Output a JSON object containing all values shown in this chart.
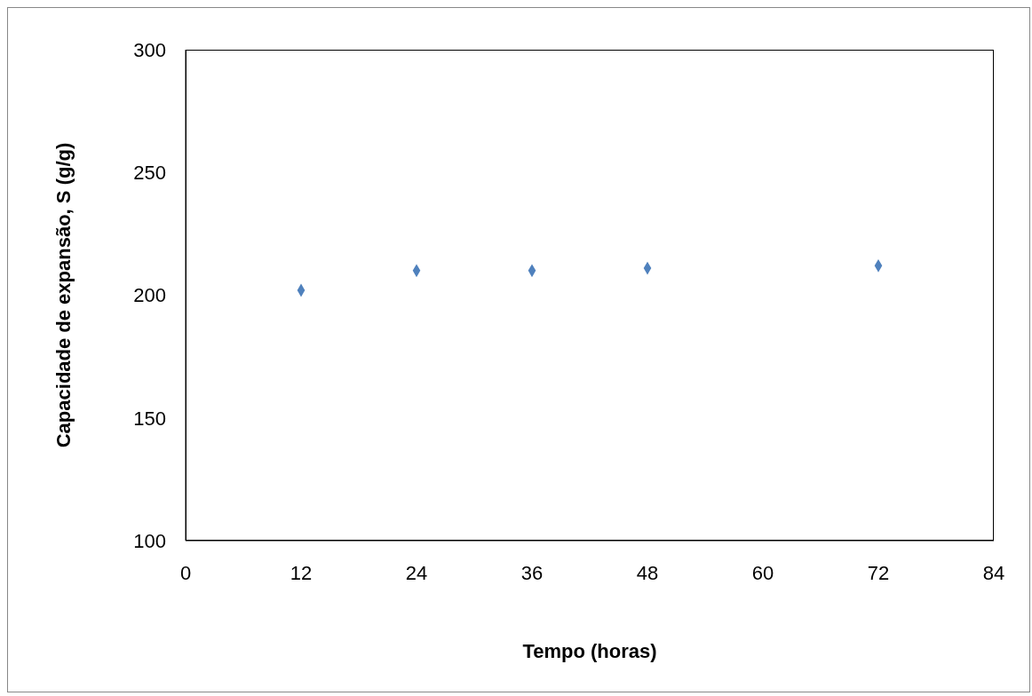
{
  "chart_data": {
    "type": "scatter",
    "xlabel": "Tempo (horas)",
    "ylabel": "Capacidade  de expansão, S (g/g)",
    "x": [
      12,
      24,
      36,
      48,
      72
    ],
    "series": [
      {
        "color": "#4f81bd",
        "values": [
          202,
          210,
          210,
          211,
          212
        ]
      }
    ],
    "xlim": [
      0,
      84
    ],
    "xticks": [
      0,
      12,
      24,
      36,
      48,
      60,
      72,
      84
    ],
    "ylim": [
      100,
      300
    ],
    "yticks": [
      100,
      150,
      200,
      250,
      300
    ],
    "grid": false,
    "legend": false,
    "marker": "diamond"
  }
}
